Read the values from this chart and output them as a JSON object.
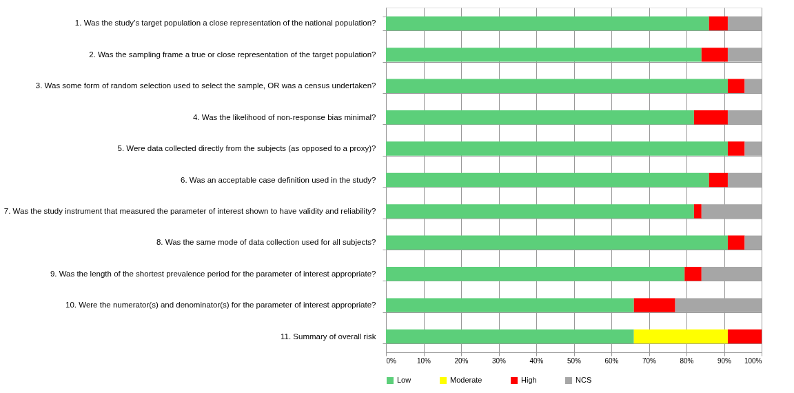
{
  "chart_data": {
    "type": "bar",
    "orientation": "horizontal",
    "stacked": true,
    "categories": [
      "1. Was the study’s target population a close representation of the national population?",
      "2. Was the sampling frame a true or close representation of the target population?",
      "3. Was some form of random selection used to select the sample, OR was a census undertaken?",
      "4. Was the likelihood of non-response bias minimal?",
      "5. Were data collected directly from the subjects (as opposed to a proxy)?",
      "6. Was an acceptable case definition used in the study?",
      "7. Was the study instrument that measured the parameter of interest shown to have validity and reliability?",
      "8. Was the same mode of data collection used for all subjects?",
      "9. Was the length of the shortest prevalence period for the parameter of interest appropriate?",
      "10. Were the numerator(s) and denominator(s) for the parameter of interest appropriate?",
      "11. Summary of overall risk"
    ],
    "series": [
      {
        "name": "Low",
        "color": "#5ccf7a",
        "values": [
          86,
          84,
          91,
          82,
          91,
          86,
          82,
          91,
          79.5,
          66,
          66
        ]
      },
      {
        "name": "Moderate",
        "color": "#ffff00",
        "values": [
          null,
          null,
          null,
          null,
          null,
          null,
          null,
          null,
          null,
          null,
          25
        ]
      },
      {
        "name": "High",
        "color": "#ff0000",
        "values": [
          5,
          7,
          4.5,
          9,
          4.5,
          5,
          2,
          4.5,
          4.5,
          11,
          9
        ]
      },
      {
        "name": "NCS",
        "color": "#a6a6a6",
        "values": [
          9,
          9,
          4.5,
          9,
          4.5,
          9,
          16,
          4.5,
          16,
          23,
          null
        ]
      }
    ],
    "xlim": [
      0,
      100
    ],
    "xticks": [
      {
        "value": 0,
        "label": "0%"
      },
      {
        "value": 10,
        "label": "10%"
      },
      {
        "value": 20,
        "label": "20%"
      },
      {
        "value": 30,
        "label": "30%"
      },
      {
        "value": 40,
        "label": "40%"
      },
      {
        "value": 50,
        "label": "50%"
      },
      {
        "value": 60,
        "label": "60%"
      },
      {
        "value": 70,
        "label": "70%"
      },
      {
        "value": 80,
        "label": "80%"
      },
      {
        "value": 90,
        "label": "90%"
      },
      {
        "value": 100,
        "label": "100%"
      }
    ],
    "grid": true,
    "legend": "bottom"
  }
}
